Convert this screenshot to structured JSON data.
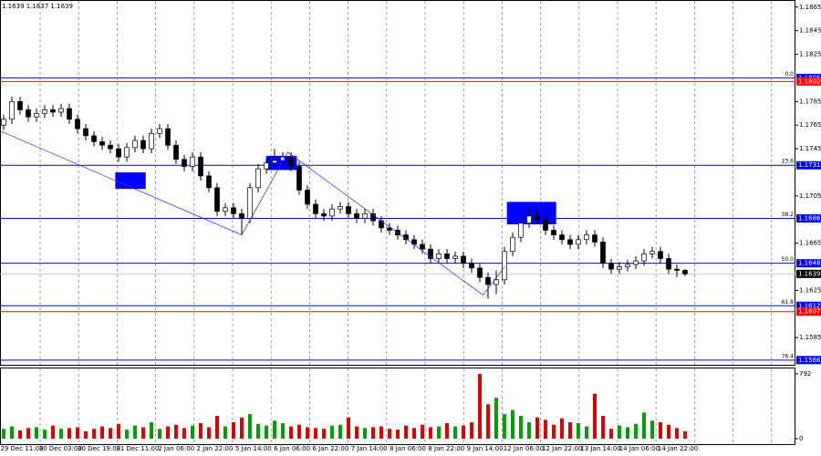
{
  "chart_data": {
    "type": "candlestick",
    "header": "1.1639 1.1637 1.1639",
    "x_labels": [
      "29 Dec 11:00",
      "30 Dec 03:00",
      "30 Dec 19:00",
      "31 Dec 11:00",
      "2 Jan 06:00",
      "2 Jan 22:00",
      "5 Jan 14:00",
      "6 Jan 06:00",
      "6 Jan 22:00",
      "7 Jan 14:00",
      "8 Jan 06:00",
      "8 Jan 22:00",
      "9 Jan 14:00",
      "12 Jan 06:00",
      "12 Jan 22:00",
      "13 Jan 14:00",
      "14 Jan 06:00",
      "14 Jan 22:00"
    ],
    "open": [
      1.1765,
      1.177,
      1.1785,
      1.1778,
      1.1772,
      1.1775,
      1.1778,
      1.1776,
      1.1779,
      1.177,
      1.1762,
      1.1756,
      1.1751,
      1.1748,
      1.1745,
      1.1738,
      1.1746,
      1.1752,
      1.1745,
      1.1758,
      1.1762,
      1.1748,
      1.1736,
      1.173,
      1.1738,
      1.1722,
      1.1712,
      1.1692,
      1.1695,
      1.169,
      1.1686,
      1.1712,
      1.1728,
      1.1733,
      1.1735,
      1.1738,
      1.173,
      1.171,
      1.1698,
      1.169,
      1.1688,
      1.1694,
      1.1696,
      1.169,
      1.1686,
      1.169,
      1.1684,
      1.1678,
      1.1676,
      1.1672,
      1.1668,
      1.1664,
      1.166,
      1.1652,
      1.1656,
      1.1652,
      1.1654,
      1.1648,
      1.1644,
      1.1636,
      1.163,
      1.1634,
      1.1658,
      1.167,
      1.1682,
      1.1688,
      1.1685,
      1.1676,
      1.1672,
      1.1668,
      1.1664,
      1.1668,
      1.1672,
      1.1666,
      1.1648,
      1.1643,
      1.1645,
      1.1647,
      1.165,
      1.1656,
      1.1658,
      1.1652,
      1.1643,
      1.1642
    ],
    "high": [
      1.1774,
      1.1789,
      1.1789,
      1.1782,
      1.1779,
      1.1782,
      1.1782,
      1.1783,
      1.1783,
      1.1774,
      1.1766,
      1.176,
      1.1755,
      1.1752,
      1.1749,
      1.175,
      1.1756,
      1.1756,
      1.1762,
      1.1766,
      1.1766,
      1.1752,
      1.174,
      1.1742,
      1.1742,
      1.1726,
      1.1716,
      1.1699,
      1.1699,
      1.1694,
      1.1716,
      1.1732,
      1.1737,
      1.1745,
      1.1742,
      1.1742,
      1.1734,
      1.1714,
      1.1702,
      1.1694,
      1.1698,
      1.17,
      1.17,
      1.1694,
      1.1694,
      1.1694,
      1.1688,
      1.1682,
      1.168,
      1.1676,
      1.1672,
      1.1668,
      1.1664,
      1.166,
      1.166,
      1.1658,
      1.1658,
      1.1652,
      1.1648,
      1.164,
      1.1642,
      1.1662,
      1.1674,
      1.1686,
      1.1695,
      1.1694,
      1.1689,
      1.168,
      1.1676,
      1.1672,
      1.1672,
      1.1676,
      1.1676,
      1.167,
      1.1652,
      1.1649,
      1.1651,
      1.1654,
      1.166,
      1.1662,
      1.1662,
      1.1656,
      1.1647,
      1.1643
    ],
    "low": [
      1.1761,
      1.1766,
      1.1774,
      1.1768,
      1.1768,
      1.1771,
      1.1772,
      1.1772,
      1.1766,
      1.1758,
      1.1752,
      1.1747,
      1.1744,
      1.1741,
      1.1734,
      1.1734,
      1.1742,
      1.1741,
      1.1741,
      1.1754,
      1.1744,
      1.1732,
      1.1726,
      1.1726,
      1.1718,
      1.1708,
      1.1688,
      1.1688,
      1.1686,
      1.1672,
      1.1682,
      1.1708,
      1.1724,
      1.1729,
      1.1731,
      1.1726,
      1.1706,
      1.1694,
      1.1686,
      1.1684,
      1.1684,
      1.169,
      1.1686,
      1.1682,
      1.1682,
      1.168,
      1.1674,
      1.1672,
      1.1668,
      1.1664,
      1.166,
      1.1656,
      1.1648,
      1.1648,
      1.1648,
      1.1648,
      1.1644,
      1.164,
      1.1632,
      1.1618,
      1.1622,
      1.163,
      1.1654,
      1.1666,
      1.1678,
      1.1681,
      1.1672,
      1.1668,
      1.1664,
      1.166,
      1.166,
      1.1664,
      1.1662,
      1.1644,
      1.1639,
      1.1639,
      1.1641,
      1.1643,
      1.1646,
      1.1652,
      1.1648,
      1.1639,
      1.1636,
      1.1637
    ],
    "close": [
      1.177,
      1.1785,
      1.1778,
      1.1772,
      1.1775,
      1.1778,
      1.1776,
      1.1779,
      1.177,
      1.1762,
      1.1756,
      1.1751,
      1.1748,
      1.1745,
      1.1738,
      1.1746,
      1.1752,
      1.1745,
      1.1758,
      1.1762,
      1.1748,
      1.1736,
      1.173,
      1.1738,
      1.1722,
      1.1712,
      1.1692,
      1.1695,
      1.169,
      1.1686,
      1.1712,
      1.1728,
      1.1733,
      1.1735,
      1.1738,
      1.173,
      1.171,
      1.1698,
      1.169,
      1.1688,
      1.1694,
      1.1696,
      1.169,
      1.1686,
      1.169,
      1.1684,
      1.1678,
      1.1676,
      1.1672,
      1.1668,
      1.1664,
      1.166,
      1.1652,
      1.1656,
      1.1652,
      1.1654,
      1.1648,
      1.1644,
      1.1636,
      1.163,
      1.1634,
      1.1658,
      1.167,
      1.1682,
      1.1688,
      1.1685,
      1.1676,
      1.1672,
      1.1668,
      1.1664,
      1.1668,
      1.1672,
      1.1666,
      1.1648,
      1.1643,
      1.1645,
      1.1647,
      1.165,
      1.1656,
      1.1658,
      1.1652,
      1.1643,
      1.1642,
      1.1639
    ],
    "volume": [
      120,
      150,
      100,
      130,
      140,
      110,
      160,
      120,
      130,
      140,
      90,
      120,
      150,
      130,
      180,
      110,
      160,
      140,
      200,
      120,
      150,
      170,
      130,
      160,
      190,
      140,
      280,
      150,
      200,
      260,
      300,
      180,
      160,
      220,
      190,
      150,
      170,
      140,
      130,
      120,
      160,
      170,
      260,
      150,
      130,
      140,
      150,
      120,
      110,
      160,
      130,
      170,
      140,
      150,
      190,
      150,
      160,
      200,
      792,
      420,
      500,
      300,
      350,
      280,
      200,
      260,
      230,
      170,
      250,
      200,
      190,
      150,
      550,
      280,
      120,
      160,
      140,
      180,
      320,
      220,
      200,
      170,
      130,
      90
    ],
    "up_color": "#ffffff",
    "down_color": "#000000",
    "volume_up_color": "#00a000",
    "volume_down_color": "#e00000",
    "ylim": [
      1.1562,
      1.1871
    ],
    "yticks": [
      1.1585,
      1.1625,
      1.1665,
      1.1705,
      1.1745,
      1.1765,
      1.1785,
      1.1825,
      1.1845,
      1.1865
    ],
    "volume_ylim": [
      0,
      792
    ],
    "volume_yticks": [
      0,
      792
    ],
    "levels": [
      {
        "name": "0.0",
        "value": 1.1805,
        "color": "#0000ff"
      },
      {
        "value": 1.1802,
        "color": "#ff0000"
      },
      {
        "name": "23.6",
        "value": 1.1731,
        "color": "#0000ff"
      },
      {
        "name": "38.2",
        "value": 1.1686,
        "color": "#0000ff"
      },
      {
        "name": "50.0",
        "value": 1.1648,
        "color": "#0000ff"
      },
      {
        "name": "61.8",
        "value": 1.1612,
        "color": "#0000ff"
      },
      {
        "value": 1.1607,
        "color": "#ff0000"
      },
      {
        "name": "76.4",
        "value": 1.1566,
        "color": "#0000ff"
      }
    ],
    "last_price": 1.1639,
    "zigzag": {
      "x": [
        -0.4,
        29,
        34.6,
        58.4,
        61
      ],
      "values": [
        1.176,
        1.1672,
        1.1742,
        1.1621,
        1.1645
      ],
      "color": "#3333ff"
    },
    "zones": [
      {
        "x": [
          13.6,
          17.3
        ],
        "values": [
          1.1725,
          1.1711
        ]
      },
      {
        "x": [
          32,
          35.7
        ],
        "values": [
          1.1739,
          1.1727
        ]
      },
      {
        "x": [
          61.3,
          67.3
        ],
        "values": [
          1.17,
          1.1681
        ]
      }
    ],
    "zone_color": "#0000ff"
  }
}
